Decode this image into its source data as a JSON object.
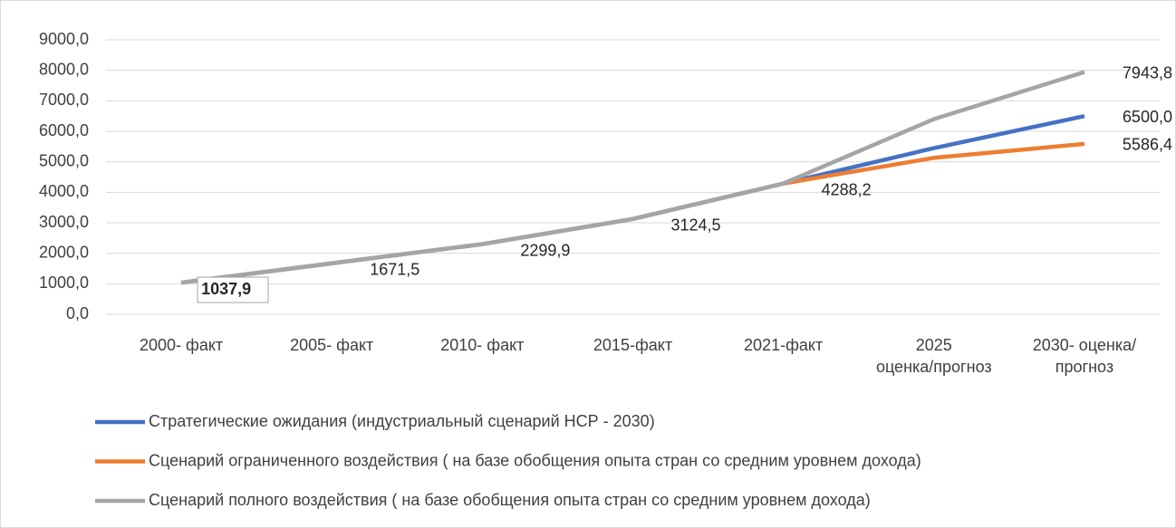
{
  "chart_data": {
    "type": "line",
    "categories": [
      "2000- факт",
      "2005- факт",
      "2010- факт",
      "2015-факт",
      "2021-факт",
      "2025\nоценка/прогноз",
      "2030- оценка/\nпрогноз"
    ],
    "series": [
      {
        "name": "Стратегические ожидания (индустриальный сценарий НСР - 2030)",
        "color": "#4472c4",
        "values": [
          1037.9,
          1671.5,
          2299.9,
          3124.5,
          4288.2,
          5450,
          6500.0
        ],
        "value_labels": [
          null,
          null,
          null,
          null,
          null,
          null,
          "6500,0"
        ]
      },
      {
        "name": "Сценарий ограниченного  воздействия ( на базе обобщения опыта  стран со средним уровнем дохода)",
        "color": "#ed7d31",
        "values": [
          1037.9,
          1671.5,
          2299.9,
          3124.5,
          4288.2,
          5130,
          5586.4
        ],
        "value_labels": [
          null,
          null,
          null,
          null,
          null,
          null,
          "5586,4"
        ]
      },
      {
        "name": "Сценарий полного воздействия ( на базе обобщения опыта стран со средним уровнем дохода)",
        "color": "#a5a5a5",
        "values": [
          1037.9,
          1671.5,
          2299.9,
          3124.5,
          4288.2,
          6400,
          7943.8
        ],
        "value_labels": [
          "1037,9",
          "1671,5",
          "2299,9",
          "3124,5",
          "4288,2",
          null,
          "7943,8"
        ]
      }
    ],
    "ylim": [
      0,
      9000
    ],
    "yticks": [
      {
        "value": 0,
        "label": "0,0"
      },
      {
        "value": 1000,
        "label": "1000,0"
      },
      {
        "value": 2000,
        "label": "2000,0"
      },
      {
        "value": 3000,
        "label": "3000,0"
      },
      {
        "value": 4000,
        "label": "4000,0"
      },
      {
        "value": 5000,
        "label": "5000,0"
      },
      {
        "value": 6000,
        "label": "6000,0"
      },
      {
        "value": 7000,
        "label": "7000,0"
      },
      {
        "value": 8000,
        "label": "8000,0"
      },
      {
        "value": 9000,
        "label": "9000,0"
      }
    ],
    "grid": true,
    "legend": "bottom"
  }
}
